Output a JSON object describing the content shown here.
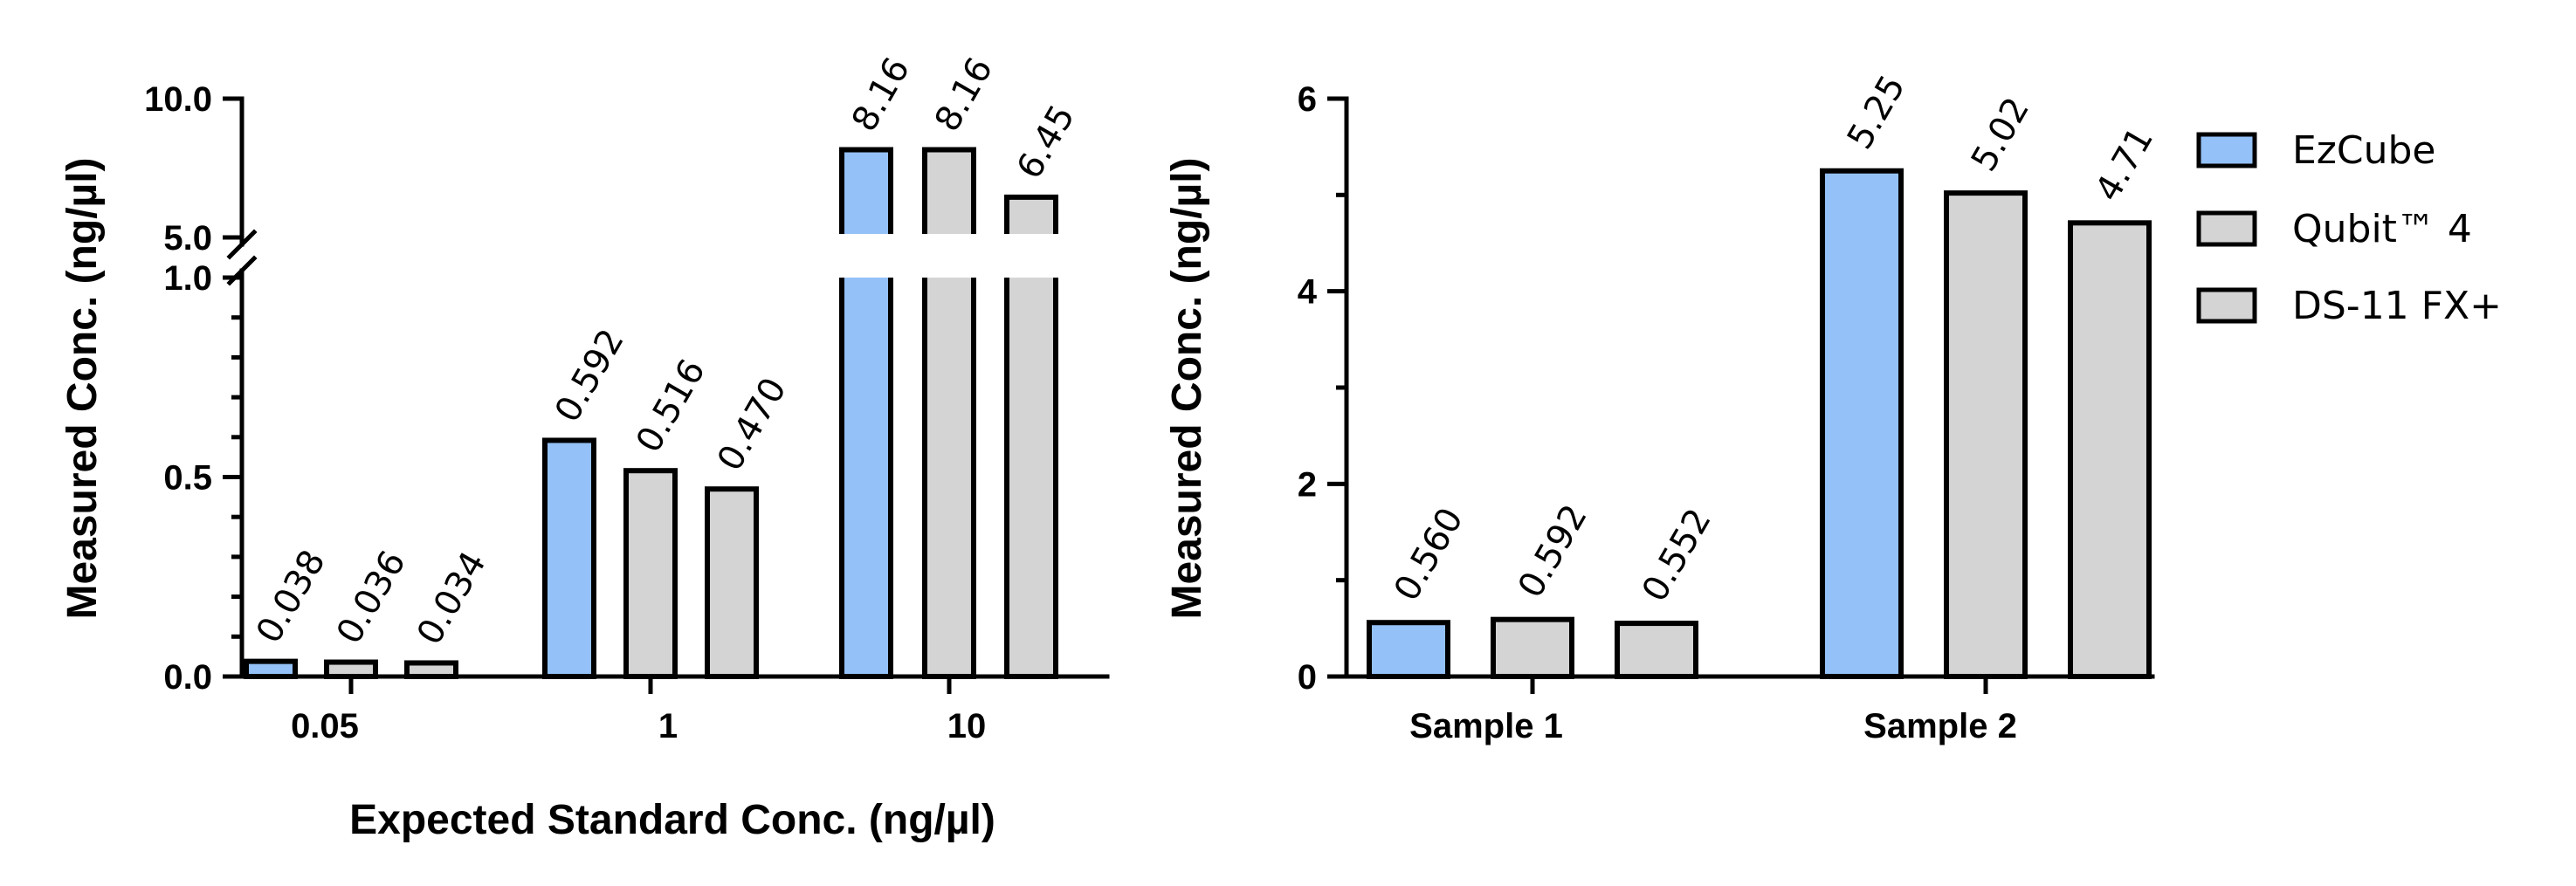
{
  "colors": {
    "EzCube": "#94c1f7",
    "Qubit™ 4": "#d4d4d4",
    "DS-11 FX+": "#d4d4d4",
    "outline": "#000000"
  },
  "legend": {
    "placement": "right",
    "items": [
      "EzCube",
      "Qubit™ 4",
      "DS-11 FX+"
    ]
  },
  "chart_data": [
    {
      "type": "bar",
      "title": "",
      "xlabel": "Expected Standard Conc. (ng/µl)",
      "ylabel": "Measured Conc. (ng/µl)",
      "broken_axis": true,
      "ylim_lower": [
        0,
        1.0
      ],
      "ylim_upper": [
        5.0,
        10.0
      ],
      "yticks": [
        "0.0",
        "0.5",
        "1.0",
        "5.0",
        "10.0"
      ],
      "categories": [
        "0.05",
        "1",
        "10"
      ],
      "series": [
        {
          "name": "EzCube",
          "values": [
            0.038,
            0.592,
            8.16
          ],
          "labels": [
            "0.038",
            "0.592",
            "8.16"
          ]
        },
        {
          "name": "Qubit™ 4",
          "values": [
            0.036,
            0.516,
            8.16
          ],
          "labels": [
            "0.036",
            "0.516",
            "8.16"
          ]
        },
        {
          "name": "DS-11 FX+",
          "values": [
            0.034,
            0.47,
            6.45
          ],
          "labels": [
            "0.034",
            "0.470",
            "6.45"
          ]
        }
      ],
      "grid": false
    },
    {
      "type": "bar",
      "title": "",
      "xlabel": "",
      "ylabel": "Measured Conc. (ng/µl)",
      "ylim": [
        0,
        6
      ],
      "yticks": [
        "0",
        "2",
        "4",
        "6"
      ],
      "categories": [
        "Sample 1",
        "Sample 2"
      ],
      "series": [
        {
          "name": "EzCube",
          "values": [
            0.56,
            5.25
          ],
          "labels": [
            "0.560",
            "5.25"
          ]
        },
        {
          "name": "Qubit™ 4",
          "values": [
            0.592,
            5.02
          ],
          "labels": [
            "0.592",
            "5.02"
          ]
        },
        {
          "name": "DS-11 FX+",
          "values": [
            0.552,
            4.71
          ],
          "labels": [
            "0.552",
            "4.71"
          ]
        }
      ],
      "grid": false
    }
  ]
}
